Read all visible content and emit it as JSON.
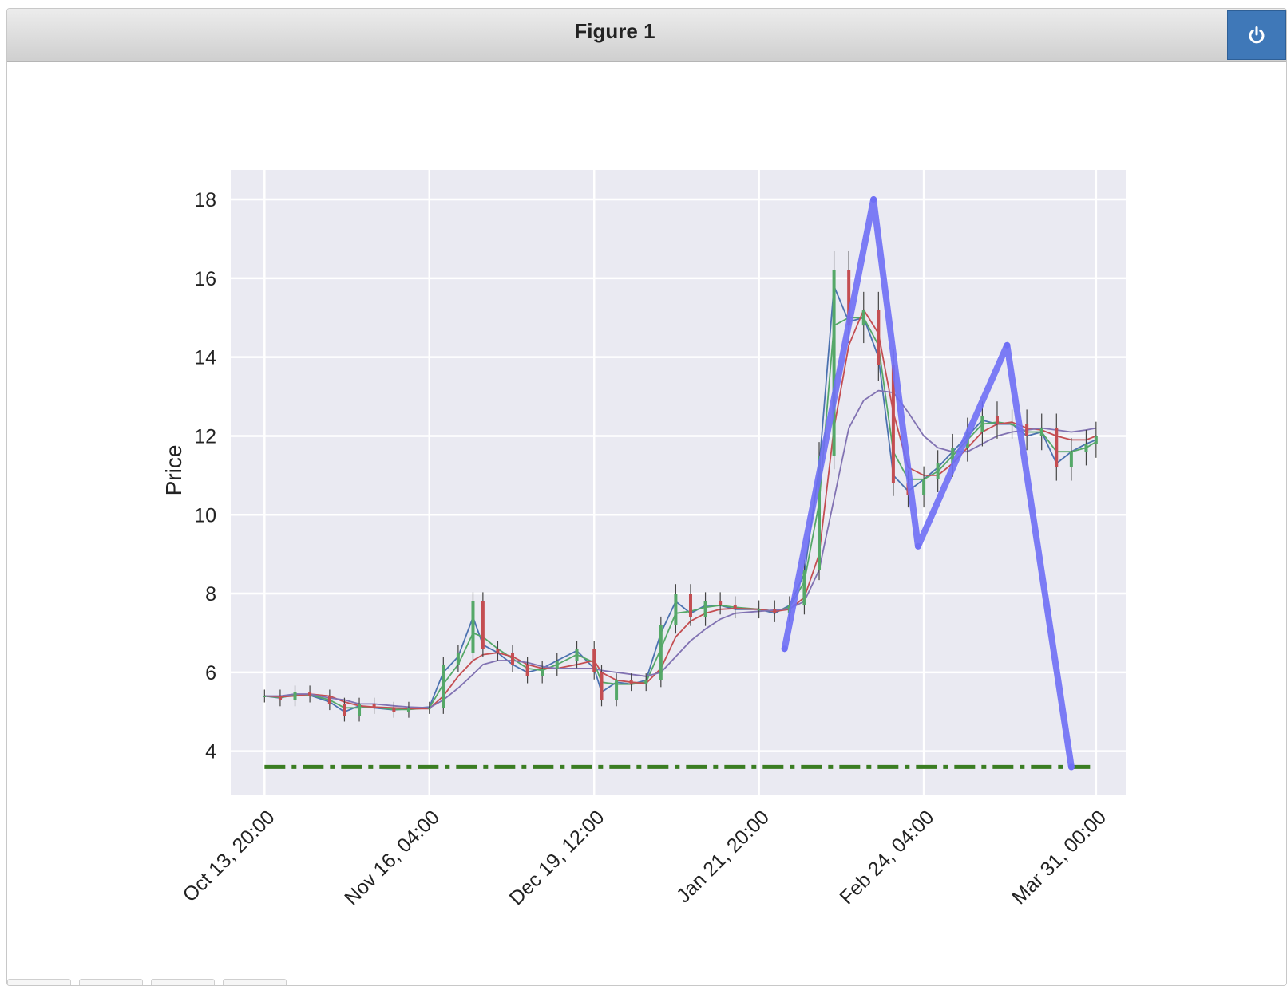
{
  "window": {
    "title": "Figure 1",
    "close_icon": "power-icon"
  },
  "colors": {
    "plot_background": "#eaeaf2",
    "grid": "#ffffff",
    "zigzag": "#6f6ff5",
    "level_line": "#3a7d22",
    "ma_blue": "#4c72b0",
    "ma_green": "#55a868",
    "ma_red": "#c44e52",
    "ma_purple": "#8172b2",
    "candle_up": "#55a868",
    "candle_down": "#c44e52",
    "close_button": "#3f78b8"
  },
  "chart_data": {
    "type": "line",
    "title": "",
    "xlabel": "",
    "ylabel": "Price",
    "ylim": [
      2.9,
      18.75
    ],
    "yticks": [
      4,
      6,
      8,
      10,
      12,
      14,
      16,
      18
    ],
    "xlim": [
      "2020-10-07 00:00",
      "2021-04-06 00:00"
    ],
    "xticks": [
      "2020-10-13 20:00",
      "2020-11-16 04:00",
      "2020-12-19 12:00",
      "2021-01-21 20:00",
      "2021-02-24 04:00",
      "2021-03-31 00:00"
    ],
    "xtick_labels": [
      "Oct 13, 20:00",
      "Nov 16, 04:00",
      "Dec 19, 12:00",
      "Jan 21, 20:00",
      "Feb 24, 04:00",
      "Mar 31, 00:00"
    ],
    "grid": true,
    "price_series": {
      "name": "",
      "x": [
        "2020-10-13 20:00",
        "2020-10-17 00:00",
        "2020-10-20 00:00",
        "2020-10-23 00:00",
        "2020-10-27 00:00",
        "2020-10-30 00:00",
        "2020-11-02 00:00",
        "2020-11-05 00:00",
        "2020-11-09 00:00",
        "2020-11-12 00:00",
        "2020-11-16 04:00",
        "2020-11-19 00:00",
        "2020-11-22 00:00",
        "2020-11-25 00:00",
        "2020-11-27 00:00",
        "2020-11-30 00:00",
        "2020-12-03 00:00",
        "2020-12-06 00:00",
        "2020-12-09 00:00",
        "2020-12-12 00:00",
        "2020-12-16 00:00",
        "2020-12-19 12:00",
        "2020-12-21 00:00",
        "2020-12-24 00:00",
        "2020-12-27 00:00",
        "2020-12-30 00:00",
        "2021-01-02 00:00",
        "2021-01-05 00:00",
        "2021-01-08 00:00",
        "2021-01-11 00:00",
        "2021-01-14 00:00",
        "2021-01-17 00:00",
        "2021-01-21 20:00",
        "2021-01-25 00:00",
        "2021-01-28 00:00",
        "2021-01-31 00:00",
        "2021-02-03 00:00",
        "2021-02-06 00:00",
        "2021-02-09 00:00",
        "2021-02-12 00:00",
        "2021-02-15 00:00",
        "2021-02-18 00:00",
        "2021-02-21 00:00",
        "2021-02-24 04:00",
        "2021-02-27 00:00",
        "2021-03-02 00:00",
        "2021-03-05 00:00",
        "2021-03-08 00:00",
        "2021-03-11 00:00",
        "2021-03-14 00:00",
        "2021-03-17 00:00",
        "2021-03-20 00:00",
        "2021-03-23 00:00",
        "2021-03-26 00:00",
        "2021-03-29 00:00",
        "2021-03-31 00:00"
      ],
      "values": [
        5.4,
        5.3,
        5.5,
        5.4,
        5.2,
        4.9,
        5.2,
        5.1,
        5.0,
        5.1,
        5.1,
        6.2,
        6.5,
        7.8,
        6.6,
        6.5,
        6.2,
        5.9,
        6.1,
        6.3,
        6.6,
        6.0,
        5.3,
        5.8,
        5.7,
        5.8,
        7.2,
        8.0,
        7.4,
        7.8,
        7.7,
        7.6,
        7.6,
        7.5,
        7.7,
        8.6,
        11.5,
        16.2,
        14.8,
        15.2,
        13.8,
        10.8,
        10.5,
        10.9,
        11.3,
        11.7,
        12.1,
        12.5,
        12.3,
        12.3,
        12.0,
        12.2,
        11.2,
        11.6,
        11.8,
        12.0
      ]
    },
    "moving_averages": [
      {
        "name": "",
        "color": "#4c72b0",
        "values": [
          5.4,
          5.35,
          5.45,
          5.42,
          5.25,
          5.0,
          5.15,
          5.1,
          5.05,
          5.08,
          5.12,
          6.0,
          6.4,
          7.4,
          6.7,
          6.5,
          6.2,
          6.0,
          6.1,
          6.3,
          6.55,
          6.1,
          5.5,
          5.75,
          5.7,
          5.8,
          7.0,
          7.8,
          7.5,
          7.7,
          7.7,
          7.6,
          7.6,
          7.5,
          7.7,
          8.5,
          11.2,
          15.8,
          14.9,
          15.0,
          14.0,
          11.0,
          10.6,
          10.9,
          11.2,
          11.6,
          12.0,
          12.4,
          12.3,
          12.3,
          12.0,
          12.1,
          11.3,
          11.6,
          11.8,
          11.9
        ]
      },
      {
        "name": "",
        "color": "#55a868",
        "values": [
          5.4,
          5.36,
          5.42,
          5.43,
          5.3,
          5.1,
          5.1,
          5.12,
          5.06,
          5.06,
          5.1,
          5.7,
          6.2,
          7.0,
          6.9,
          6.6,
          6.35,
          6.1,
          6.05,
          6.2,
          6.45,
          6.25,
          5.75,
          5.7,
          5.7,
          5.75,
          6.6,
          7.5,
          7.55,
          7.65,
          7.7,
          7.65,
          7.6,
          7.55,
          7.65,
          8.3,
          10.3,
          14.8,
          15.0,
          15.0,
          14.3,
          11.6,
          10.9,
          10.9,
          11.1,
          11.5,
          11.9,
          12.3,
          12.35,
          12.3,
          12.1,
          12.1,
          11.6,
          11.6,
          11.7,
          11.85
        ]
      },
      {
        "name": "",
        "color": "#c44e52",
        "values": [
          5.4,
          5.38,
          5.4,
          5.45,
          5.4,
          5.25,
          5.15,
          5.12,
          5.1,
          5.08,
          5.08,
          5.4,
          5.9,
          6.3,
          6.45,
          6.5,
          6.4,
          6.2,
          6.1,
          6.1,
          6.2,
          6.3,
          6.0,
          5.8,
          5.75,
          5.72,
          6.1,
          6.9,
          7.3,
          7.5,
          7.6,
          7.62,
          7.6,
          7.55,
          7.6,
          7.9,
          9.0,
          12.2,
          14.3,
          15.2,
          14.6,
          12.6,
          11.2,
          11.0,
          11.0,
          11.3,
          11.7,
          12.1,
          12.3,
          12.35,
          12.2,
          12.15,
          12.0,
          11.9,
          11.9,
          12.0
        ]
      },
      {
        "name": "",
        "color": "#8172b2",
        "values": [
          5.4,
          5.4,
          5.45,
          5.45,
          5.35,
          5.3,
          5.2,
          5.2,
          5.15,
          5.12,
          5.1,
          5.3,
          5.6,
          5.95,
          6.2,
          6.3,
          6.3,
          6.25,
          6.15,
          6.1,
          6.1,
          6.1,
          6.05,
          6.0,
          5.95,
          5.9,
          6.0,
          6.4,
          6.8,
          7.1,
          7.35,
          7.5,
          7.55,
          7.58,
          7.62,
          7.8,
          8.6,
          10.4,
          12.2,
          12.9,
          13.15,
          13.1,
          12.6,
          12.0,
          11.7,
          11.6,
          11.6,
          11.8,
          12.0,
          12.1,
          12.15,
          12.2,
          12.15,
          12.1,
          12.15,
          12.2
        ]
      }
    ],
    "zigzag": {
      "name": "",
      "x": [
        "2021-01-27 00:00",
        "2021-02-14 00:00",
        "2021-02-23 00:00",
        "2021-03-13 00:00",
        "2021-03-26 00:00"
      ],
      "y": [
        6.6,
        18.0,
        9.2,
        14.3,
        3.6
      ]
    },
    "horizontal_level": {
      "name": "",
      "y": 3.6,
      "x_from": "2020-10-13 20:00",
      "x_to": "2021-03-31 00:00",
      "style": "dash-dot"
    }
  }
}
